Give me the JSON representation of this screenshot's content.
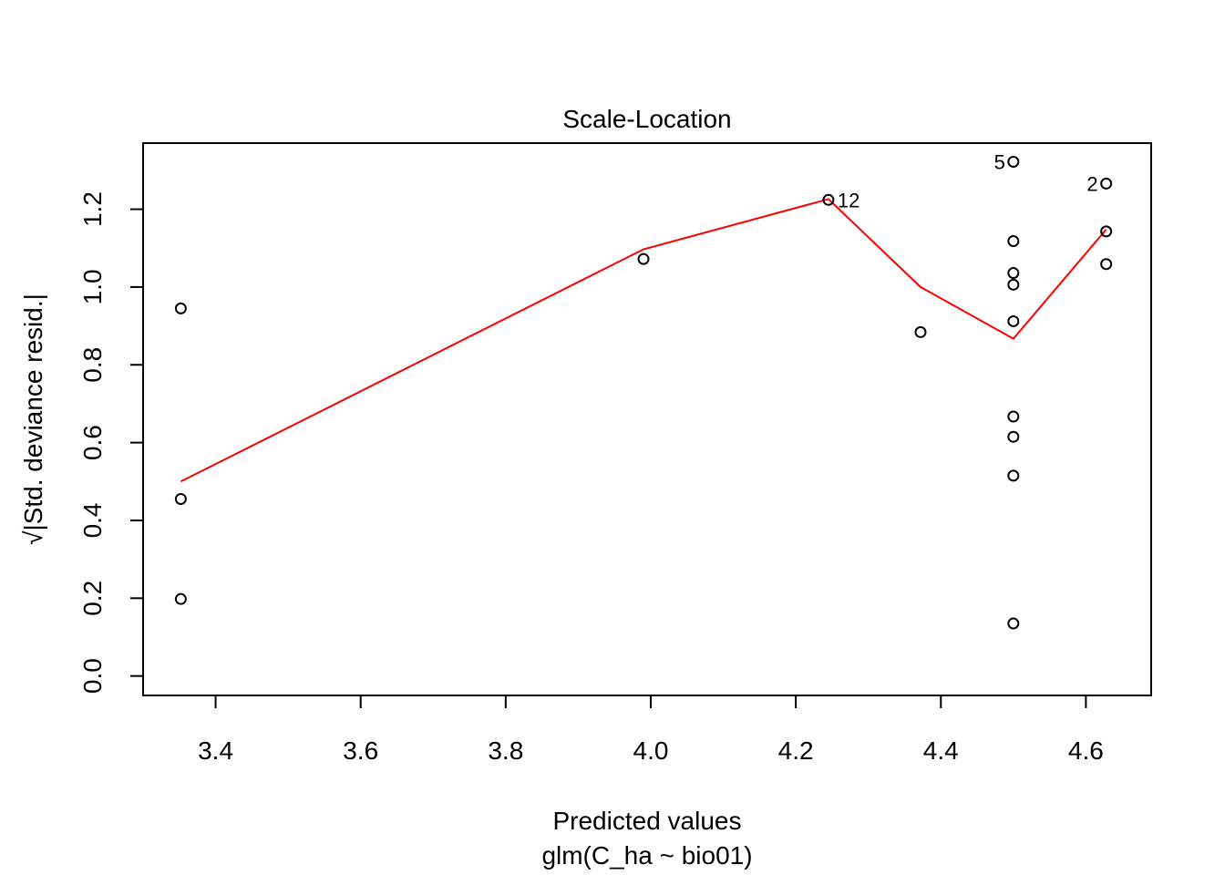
{
  "chart_data": {
    "type": "scatter",
    "title": "Scale-Location",
    "xlabel": "Predicted values",
    "subtitle": "glm(C_ha ~ bio01)",
    "ylabel": "√|Std. deviance resid.|",
    "xlim": [
      3.3,
      4.69
    ],
    "ylim": [
      -0.05,
      1.37
    ],
    "xticks": [
      "3.4",
      "3.6",
      "3.8",
      "4.0",
      "4.2",
      "4.4",
      "4.6"
    ],
    "yticks": [
      "0.0",
      "0.2",
      "0.4",
      "0.6",
      "0.8",
      "1.0",
      "1.2"
    ],
    "grid": false,
    "points": [
      {
        "x": 3.352,
        "y": 0.945
      },
      {
        "x": 3.352,
        "y": 0.455
      },
      {
        "x": 3.352,
        "y": 0.198
      },
      {
        "x": 3.99,
        "y": 1.072
      },
      {
        "x": 4.245,
        "y": 1.224,
        "label": "12"
      },
      {
        "x": 4.372,
        "y": 0.884
      },
      {
        "x": 4.5,
        "y": 1.322,
        "label": "5"
      },
      {
        "x": 4.5,
        "y": 1.118
      },
      {
        "x": 4.5,
        "y": 1.036
      },
      {
        "x": 4.5,
        "y": 1.006
      },
      {
        "x": 4.5,
        "y": 0.912
      },
      {
        "x": 4.5,
        "y": 0.667
      },
      {
        "x": 4.5,
        "y": 0.615
      },
      {
        "x": 4.5,
        "y": 0.515
      },
      {
        "x": 4.5,
        "y": 0.135
      },
      {
        "x": 4.628,
        "y": 1.266,
        "label": "2"
      },
      {
        "x": 4.628,
        "y": 1.143
      },
      {
        "x": 4.628,
        "y": 1.059
      }
    ],
    "smooth_line": {
      "color": "#ff0000",
      "points": [
        {
          "x": 3.352,
          "y": 0.5
        },
        {
          "x": 3.99,
          "y": 1.097
        },
        {
          "x": 4.245,
          "y": 1.226
        },
        {
          "x": 4.372,
          "y": 1.0
        },
        {
          "x": 4.5,
          "y": 0.867
        },
        {
          "x": 4.628,
          "y": 1.148
        }
      ]
    },
    "colors": {
      "points": "#000000",
      "line": "#ff0000"
    }
  }
}
